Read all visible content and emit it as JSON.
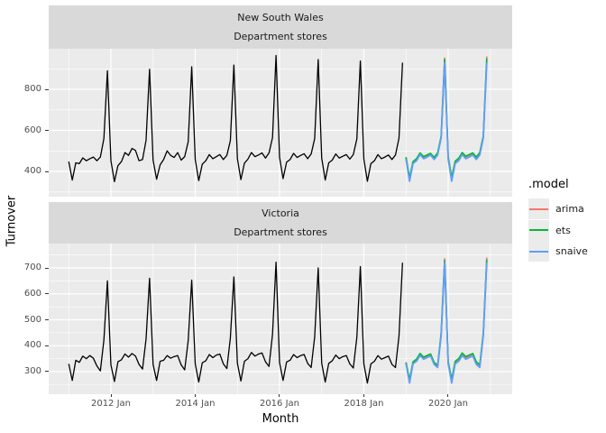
{
  "colors": {
    "historical": "#000000",
    "arima": "#F8766D",
    "ets": "#00BA38",
    "snaive": "#619CFF",
    "strip_bg": "#D9D9D9",
    "panel_bg": "#EBEBEB",
    "grid": "#FFFFFF",
    "tick_text": "#4D4D4D"
  },
  "legend": {
    "title": ".model",
    "items": [
      {
        "label": "arima",
        "color": "#F8766D"
      },
      {
        "label": "ets",
        "color": "#00BA38"
      },
      {
        "label": "snaive",
        "color": "#619CFF"
      }
    ]
  },
  "chart_data": {
    "type": "line",
    "y_axis_label": "Turnover",
    "x_axis": {
      "label": "Month",
      "xlim": [
        2010.524,
        2021.519
      ],
      "major_ticks": [
        2012,
        2014,
        2016,
        2018,
        2020
      ],
      "tick_labels": [
        "2012 Jan",
        "2014 Jan",
        "2016 Jan",
        "2018 Jan",
        "2020 Jan"
      ],
      "minor_ticks": [
        2011,
        2013,
        2015,
        2017,
        2019,
        2021
      ]
    },
    "panels": [
      {
        "strip_line1": "New South Wales",
        "strip_line2": "Department stores",
        "ylim": [
          277,
          998
        ],
        "major_ticks": [
          400,
          600,
          800
        ],
        "minor_ticks": [
          300,
          500,
          700,
          900
        ],
        "series": [
          {
            "name": "historical",
            "color": "#000000",
            "width": 1.3,
            "start": 2011.0,
            "values": [
              448,
              358,
              442,
              438,
              466,
              452,
              462,
              470,
              452,
              470,
              560,
              890,
              452,
              350,
              428,
              448,
              492,
              478,
              512,
              502,
              452,
              458,
              552,
              898,
              455,
              362,
              432,
              458,
              500,
              478,
              468,
              492,
              455,
              472,
              545,
              910,
              458,
              355,
              435,
              452,
              482,
              462,
              472,
              482,
              458,
              478,
              550,
              918,
              462,
              360,
              440,
              460,
              492,
              472,
              480,
              490,
              465,
              490,
              565,
              965,
              470,
              365,
              445,
              458,
              488,
              468,
              478,
              486,
              462,
              485,
              560,
              945,
              465,
              358,
              442,
              455,
              485,
              465,
              474,
              482,
              460,
              482,
              558,
              938,
              460,
              352,
              438,
              452,
              482,
              462,
              470,
              480,
              458,
              480,
              562,
              930
            ]
          },
          {
            "name": "arima",
            "color": "#F8766D",
            "width": 1.7,
            "start": 2019.0,
            "values": [
              466,
              362,
              444,
              456,
              486,
              468,
              476,
              484,
              464,
              486,
              566,
              952,
              468,
              364,
              446,
              458,
              488,
              470,
              478,
              486,
              466,
              488,
              568,
              960
            ]
          },
          {
            "name": "ets",
            "color": "#00BA38",
            "width": 1.7,
            "start": 2019.0,
            "values": [
              470,
              368,
              448,
              462,
              490,
              472,
              480,
              488,
              468,
              490,
              570,
              945,
              472,
              370,
              450,
              464,
              492,
              474,
              482,
              490,
              470,
              492,
              572,
              950
            ]
          },
          {
            "name": "snaive",
            "color": "#619CFF",
            "width": 1.7,
            "start": 2019.0,
            "values": [
              460,
              352,
              438,
              452,
              482,
              462,
              470,
              480,
              458,
              480,
              562,
              930,
              460,
              352,
              438,
              452,
              482,
              462,
              470,
              480,
              458,
              480,
              562,
              930
            ]
          }
        ]
      },
      {
        "strip_line1": "Victoria",
        "strip_line2": "Department stores",
        "ylim": [
          213,
          794
        ],
        "major_ticks": [
          300,
          400,
          500,
          600,
          700
        ],
        "minor_ticks": [
          250,
          350,
          450,
          550,
          650,
          750
        ],
        "series": [
          {
            "name": "historical",
            "color": "#000000",
            "width": 1.3,
            "start": 2011.0,
            "values": [
              330,
              266,
              344,
              336,
              360,
              350,
              362,
              352,
              322,
              303,
              422,
              650,
              326,
              262,
              338,
              346,
              368,
              356,
              370,
              360,
              328,
              310,
              426,
              660,
              328,
              266,
              340,
              344,
              362,
              352,
              358,
              362,
              326,
              307,
              420,
              653,
              330,
              260,
              334,
              342,
              366,
              354,
              364,
              368,
              330,
              312,
              430,
              665,
              332,
              264,
              340,
              350,
              374,
              360,
              368,
              372,
              338,
              320,
              444,
              722,
              335,
              266,
              337,
              344,
              366,
              354,
              362,
              366,
              332,
              316,
              434,
              700,
              333,
              260,
              332,
              342,
              364,
              350,
              358,
              362,
              330,
              314,
              432,
              705,
              330,
              256,
              330,
              340,
              362,
              348,
              354,
              360,
              328,
              316,
              438,
              720
            ]
          },
          {
            "name": "arima",
            "color": "#F8766D",
            "width": 1.7,
            "start": 2019.0,
            "values": [
              334,
              262,
              334,
              344,
              366,
              352,
              358,
              364,
              332,
              320,
              442,
              735,
              336,
              264,
              336,
              346,
              368,
              354,
              360,
              366,
              334,
              322,
              444,
              740
            ]
          },
          {
            "name": "ets",
            "color": "#00BA38",
            "width": 1.7,
            "start": 2019.0,
            "values": [
              336,
              268,
              338,
              348,
              370,
              356,
              362,
              368,
              336,
              324,
              446,
              728,
              338,
              270,
              340,
              350,
              372,
              358,
              364,
              370,
              338,
              326,
              448,
              732
            ]
          },
          {
            "name": "snaive",
            "color": "#619CFF",
            "width": 1.7,
            "start": 2019.0,
            "values": [
              330,
              256,
              330,
              340,
              362,
              348,
              354,
              360,
              328,
              316,
              438,
              720,
              330,
              256,
              330,
              340,
              362,
              348,
              354,
              360,
              328,
              316,
              438,
              720
            ]
          }
        ]
      }
    ]
  }
}
